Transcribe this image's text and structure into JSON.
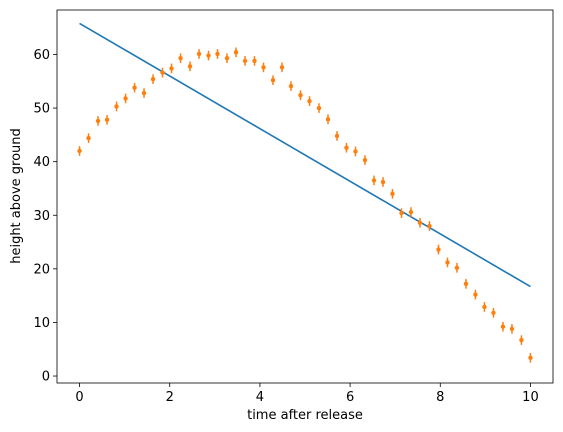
{
  "chart_data": {
    "type": "line",
    "title": "",
    "xlabel": "time after release",
    "ylabel": "height above ground",
    "xlim": [
      -0.5,
      10.5
    ],
    "ylim": [
      -1.3,
      68.3
    ],
    "xticks": [
      0,
      2,
      4,
      6,
      8,
      10
    ],
    "yticks": [
      0,
      10,
      20,
      30,
      40,
      50,
      60
    ],
    "grid": false,
    "legend": "none",
    "series": [
      {
        "kind": "line",
        "color": "#1f77b4",
        "x": [
          0,
          10
        ],
        "y": [
          65.8,
          16.7
        ]
      },
      {
        "kind": "errorbar",
        "color": "#ff7f0e",
        "yerr": 0.9,
        "x": [
          0.0,
          0.2,
          0.41,
          0.61,
          0.82,
          1.02,
          1.22,
          1.43,
          1.63,
          1.84,
          2.04,
          2.24,
          2.45,
          2.65,
          2.86,
          3.06,
          3.27,
          3.47,
          3.67,
          3.88,
          4.08,
          4.29,
          4.49,
          4.69,
          4.9,
          5.1,
          5.31,
          5.51,
          5.71,
          5.92,
          6.12,
          6.33,
          6.53,
          6.73,
          6.94,
          7.14,
          7.35,
          7.55,
          7.76,
          7.96,
          8.16,
          8.37,
          8.57,
          8.78,
          8.98,
          9.18,
          9.39,
          9.59,
          9.8,
          10.0
        ],
        "y": [
          42.0,
          44.4,
          47.6,
          47.8,
          50.3,
          51.8,
          53.8,
          52.8,
          55.4,
          56.6,
          57.4,
          59.3,
          57.8,
          60.1,
          59.8,
          60.1,
          59.3,
          60.4,
          58.8,
          58.8,
          57.6,
          55.2,
          57.6,
          54.1,
          52.4,
          51.3,
          50.0,
          47.9,
          44.8,
          42.6,
          41.9,
          40.3,
          36.5,
          36.2,
          34.0,
          30.4,
          30.6,
          28.6,
          28.0,
          23.6,
          21.2,
          20.2,
          17.2,
          15.2,
          12.9,
          11.8,
          9.2,
          8.8,
          6.7,
          3.4
        ]
      }
    ]
  }
}
